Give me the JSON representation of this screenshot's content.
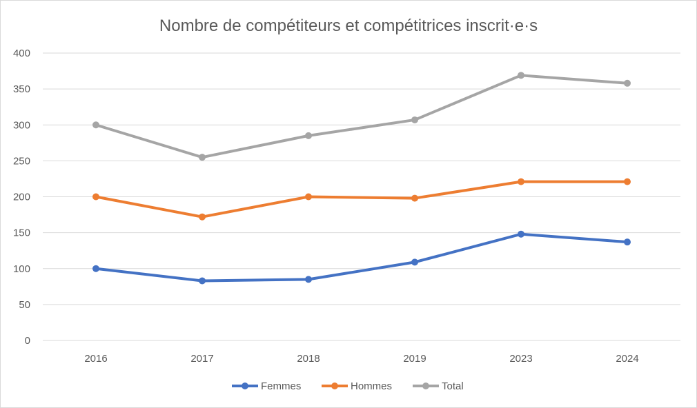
{
  "chart_data": {
    "type": "line",
    "title": "Nombre de compétiteurs et compétitrices inscrit·e·s",
    "xlabel": "",
    "ylabel": "",
    "categories": [
      "2016",
      "2017",
      "2018",
      "2019",
      "2023",
      "2024"
    ],
    "ylim": [
      0,
      400
    ],
    "yticks": [
      0,
      50,
      100,
      150,
      200,
      250,
      300,
      350,
      400
    ],
    "grid": true,
    "legend_position": "bottom",
    "series": [
      {
        "name": "Femmes",
        "color": "#4472c4",
        "values": [
          100,
          83,
          85,
          109,
          148,
          137
        ]
      },
      {
        "name": "Hommes",
        "color": "#ed7d31",
        "values": [
          200,
          172,
          200,
          198,
          221,
          221
        ]
      },
      {
        "name": "Total",
        "color": "#a5a5a5",
        "values": [
          300,
          255,
          285,
          307,
          369,
          358
        ]
      }
    ]
  }
}
